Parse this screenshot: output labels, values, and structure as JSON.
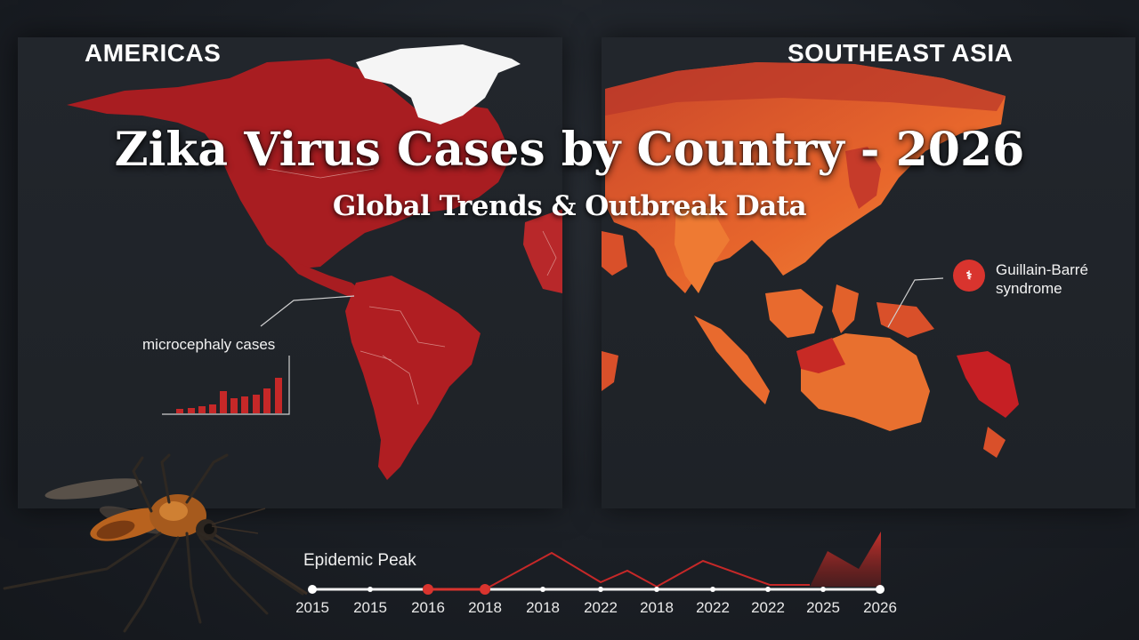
{
  "regions": {
    "americas": "AMERICAS",
    "southeast_asia": "SOUTHEAST ASIA"
  },
  "title": "Zika Virus Cases by Country - 2026",
  "subtitle": "Global Trends & Outbreak Data",
  "annotations": {
    "microcephaly": "microcephaly cases",
    "guillain_barre": "Guillain-Barré syndrome",
    "guillain_barre_line1": "Guillain-Barré",
    "guillain_barre_line2": "syndrome",
    "epidemic_peak": "Epidemic Peak"
  },
  "timeline": {
    "labels": [
      "2015",
      "2015",
      "2016",
      "2018",
      "2018",
      "2022",
      "2018",
      "2022",
      "2022",
      "2025",
      "2026"
    ]
  },
  "colors": {
    "americas_red": "#b01e22",
    "asia_orange": "#e0622a",
    "accent_red": "#d9342e",
    "background": "#1b1f25"
  },
  "icons": {
    "gbs": "warning-icon",
    "mosquito": "mosquito-image"
  }
}
